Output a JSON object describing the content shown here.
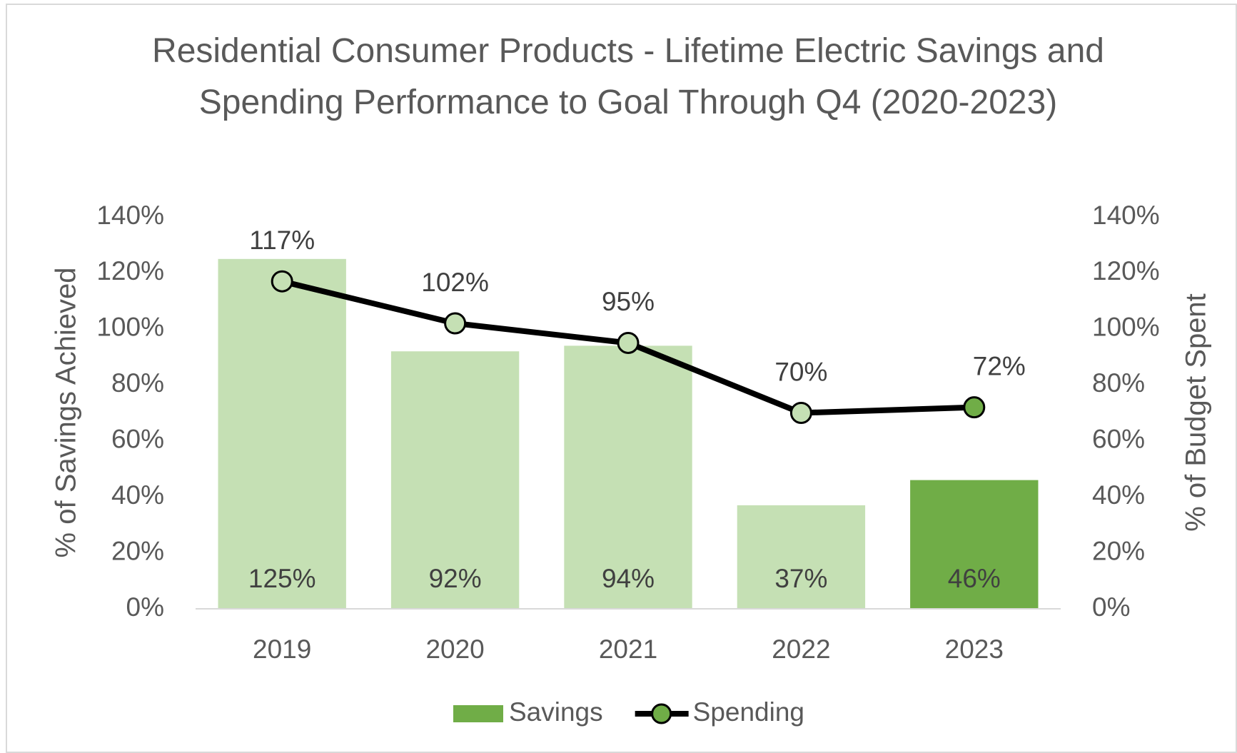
{
  "chart_data": {
    "type": "bar",
    "title": "Residential Consumer Products - Lifetime Electric Savings and Spending Performance to Goal Through Q4 (2020-2023)",
    "ylabel": "% of Savings Achieved",
    "y2label": "% of Budget Spent",
    "categories": [
      "2019",
      "2020",
      "2021",
      "2022",
      "2023"
    ],
    "series": [
      {
        "name": "Savings",
        "type": "bar",
        "color": "#70ad47",
        "point_colors": [
          "#c5e0b4",
          "#c5e0b4",
          "#c5e0b4",
          "#c5e0b4",
          "#70ad47"
        ],
        "values": [
          125,
          92,
          94,
          37,
          46
        ],
        "value_labels": [
          "125%",
          "92%",
          "94%",
          "37%",
          "46%"
        ]
      },
      {
        "name": "Spending",
        "type": "line",
        "axis": "y2",
        "color": "#000000",
        "marker_colors": [
          "#c5e0b4",
          "#c5e0b4",
          "#c5e0b4",
          "#c5e0b4",
          "#70ad47"
        ],
        "values": [
          117,
          102,
          95,
          70,
          72
        ],
        "value_labels": [
          "117%",
          "102%",
          "95%",
          "70%",
          "72%"
        ]
      }
    ],
    "ylim": [
      0,
      140
    ],
    "yticks": [
      {
        "value": 0,
        "label": "0%"
      },
      {
        "value": 20,
        "label": "20%"
      },
      {
        "value": 40,
        "label": "40%"
      },
      {
        "value": 60,
        "label": "60%"
      },
      {
        "value": 80,
        "label": "80%"
      },
      {
        "value": 100,
        "label": "100%"
      },
      {
        "value": 120,
        "label": "120%"
      },
      {
        "value": 140,
        "label": "140%"
      }
    ],
    "y2lim": [
      0,
      140
    ],
    "y2ticks": [
      {
        "value": 0,
        "label": "0%"
      },
      {
        "value": 20,
        "label": "20%"
      },
      {
        "value": 40,
        "label": "40%"
      },
      {
        "value": 60,
        "label": "60%"
      },
      {
        "value": 80,
        "label": "80%"
      },
      {
        "value": 100,
        "label": "100%"
      },
      {
        "value": 120,
        "label": "120%"
      },
      {
        "value": 140,
        "label": "140%"
      }
    ],
    "grid": false,
    "legend": "bottom"
  }
}
